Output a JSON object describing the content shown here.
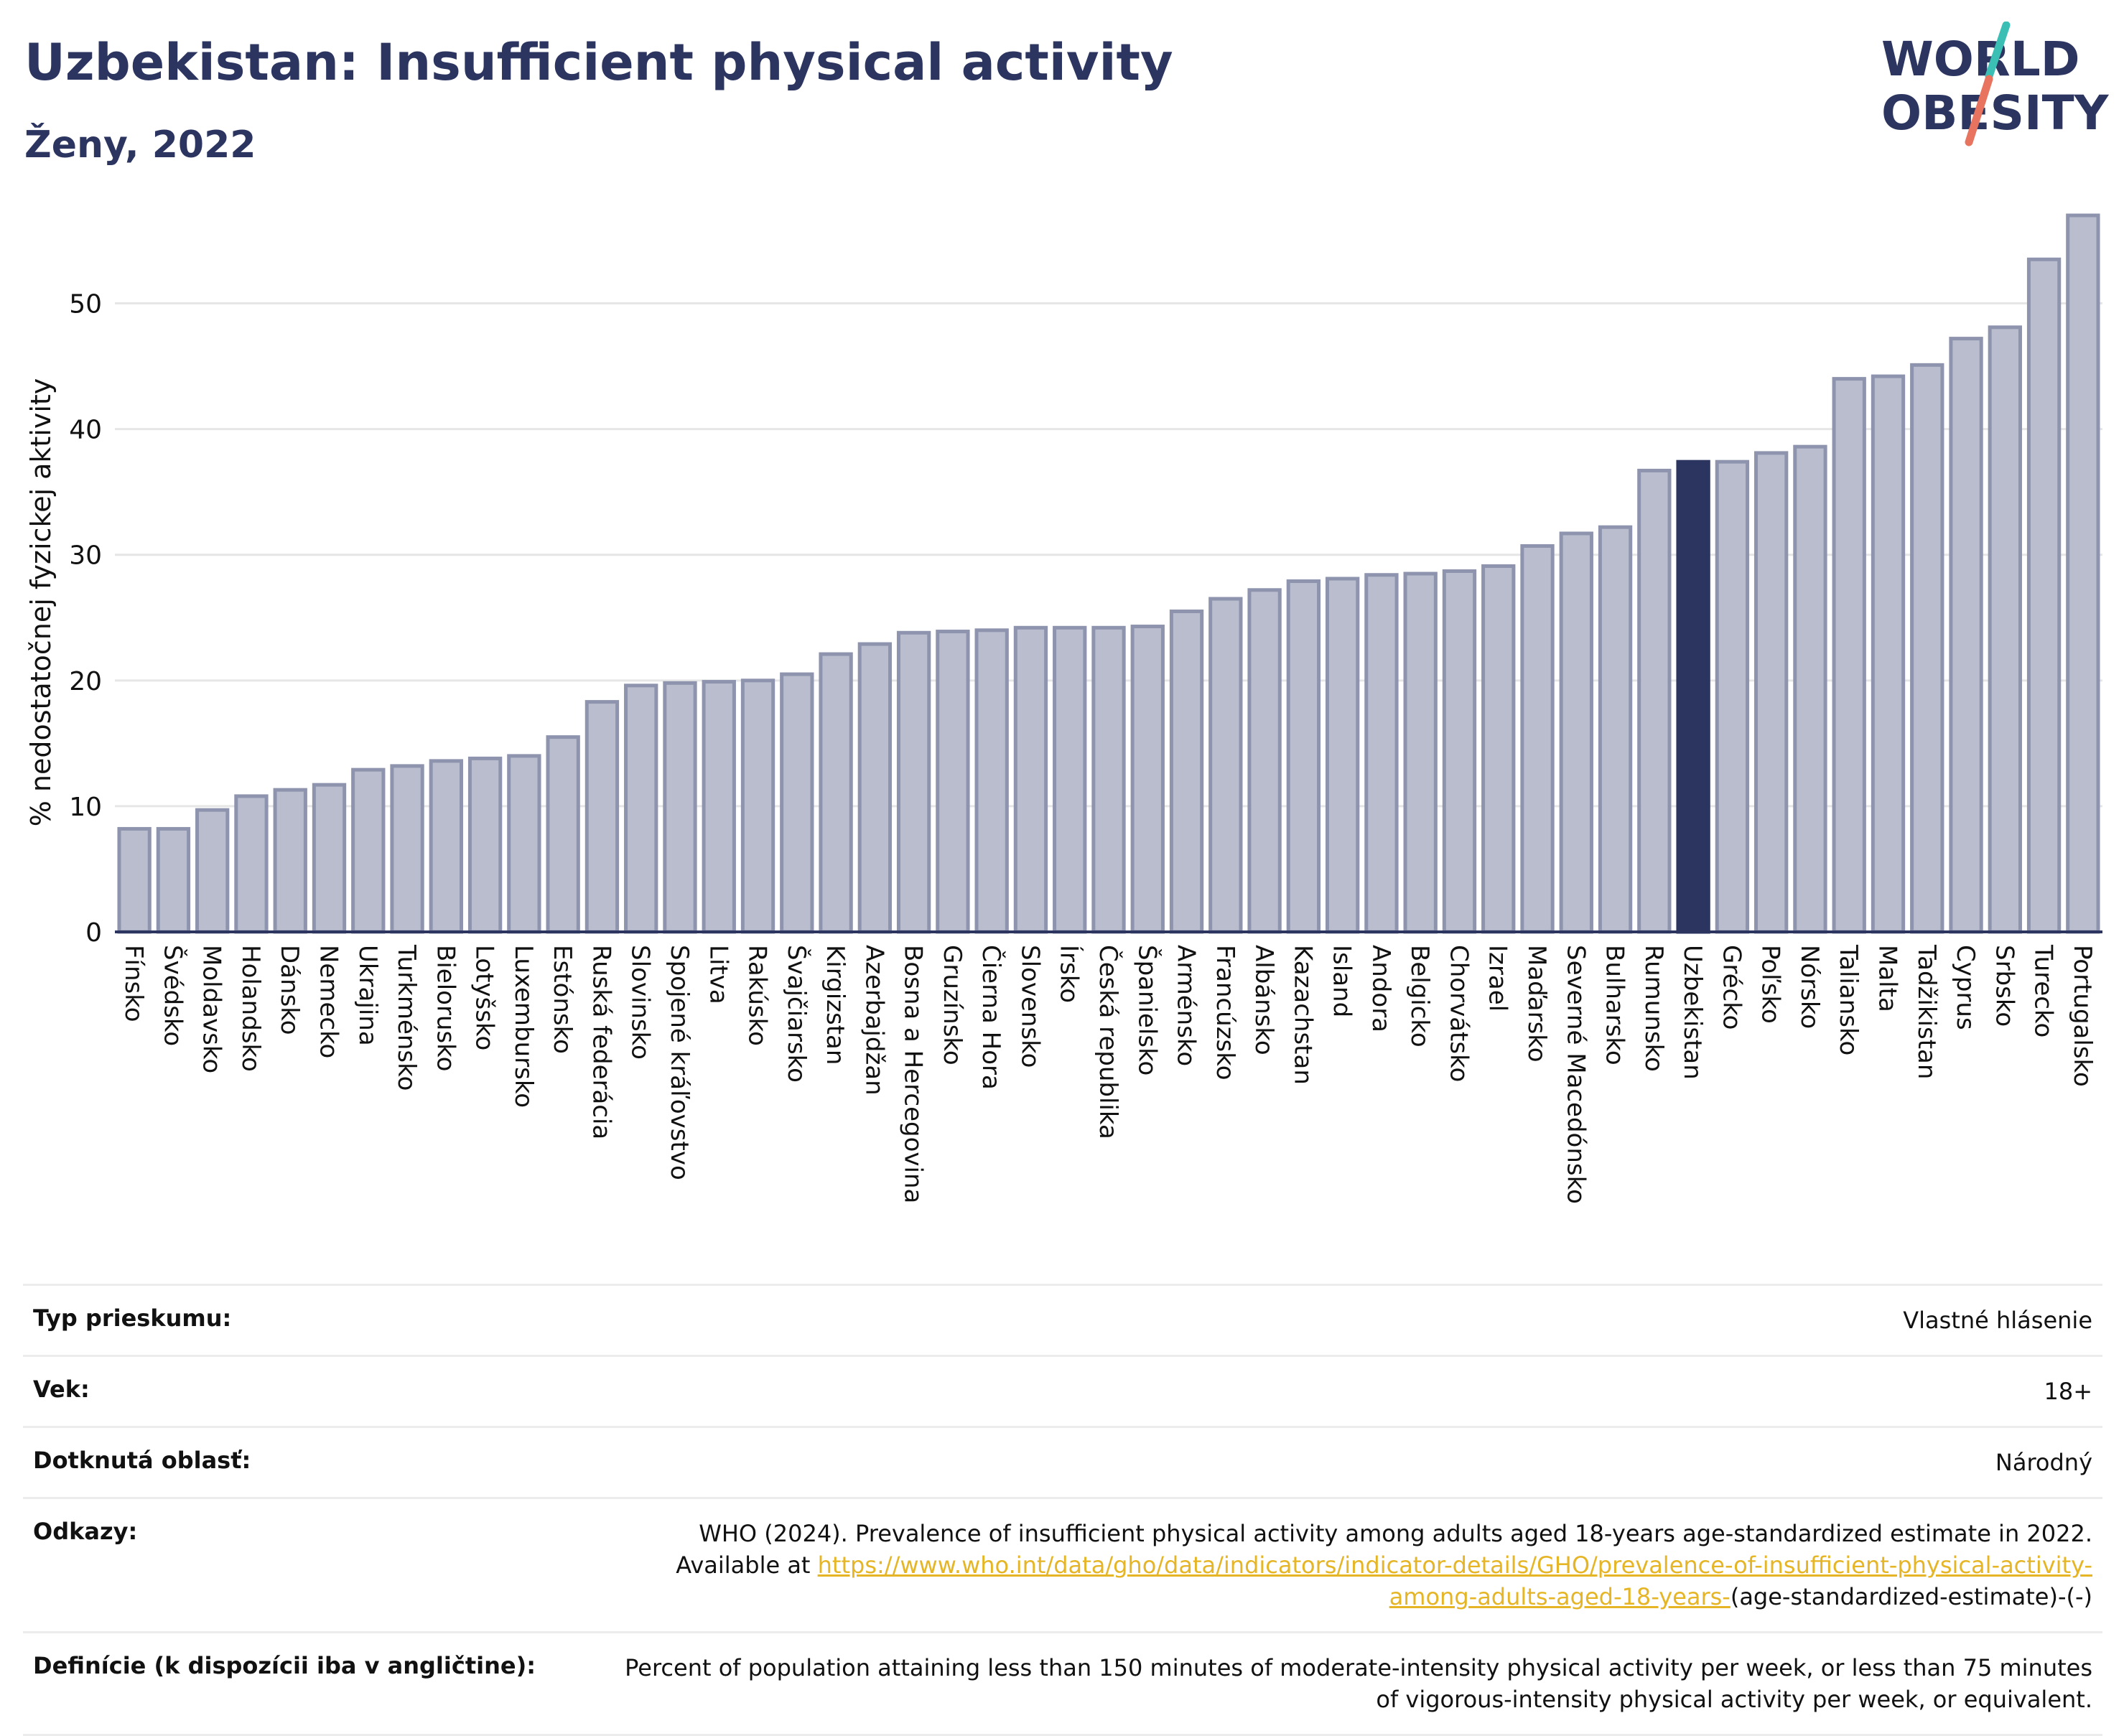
{
  "header": {
    "title": "Uzbekistan: Insufficient physical activity",
    "subtitle": "Ženy, 2022"
  },
  "logo": {
    "line1": "WORLD",
    "line2": "OBESITY",
    "text_color": "#2b3560",
    "slash_colors": [
      "#3bbfb5",
      "#e8735e"
    ]
  },
  "colors": {
    "bar_fill": "#b9bdcd",
    "bar_stroke": "#8e94ad",
    "highlight": "#2b3560",
    "grid": "#e6e6e6"
  },
  "chart_data": {
    "type": "bar",
    "ylabel": "% nedostatočnej fyzickej aktivity",
    "ylim": [
      0,
      57
    ],
    "yticks": [
      0,
      10,
      20,
      30,
      40,
      50
    ],
    "grid": true,
    "highlight": "Uzbekistan",
    "categories": [
      "Fínsko",
      "Švédsko",
      "Moldavsko",
      "Holandsko",
      "Dánsko",
      "Nemecko",
      "Ukrajina",
      "Turkménsko",
      "Bielorusko",
      "Lotyšsko",
      "Luxembursko",
      "Estónsko",
      "Ruská federácia",
      "Slovinsko",
      "Spojené kráľovstvo",
      "Litva",
      "Rakúsko",
      "Švajčiarsko",
      "Kirgizstan",
      "Azerbajdžan",
      "Bosna a Hercegovina",
      "Gruzínsko",
      "Čierna Hora",
      "Slovensko",
      "Írsko",
      "Česká republika",
      "Španielsko",
      "Arménsko",
      "Francúzsko",
      "Albánsko",
      "Kazachstan",
      "Island",
      "Andora",
      "Belgicko",
      "Chorvátsko",
      "Izrael",
      "Maďarsko",
      "Severné Macedónsko",
      "Bulharsko",
      "Rumunsko",
      "Uzbekistan",
      "Grécko",
      "Poľsko",
      "Nórsko",
      "Taliansko",
      "Malta",
      "Tadžikistan",
      "Cyprus",
      "Srbsko",
      "Turecko",
      "Portugalsko"
    ],
    "values": [
      8.2,
      8.2,
      9.7,
      10.8,
      11.3,
      11.7,
      12.9,
      13.2,
      13.6,
      13.8,
      14.0,
      15.5,
      18.3,
      19.6,
      19.8,
      19.9,
      20.0,
      20.5,
      22.1,
      22.9,
      23.8,
      23.9,
      24.0,
      24.2,
      24.2,
      24.2,
      24.3,
      25.5,
      26.5,
      27.2,
      27.9,
      28.1,
      28.4,
      28.5,
      28.7,
      29.1,
      30.7,
      31.7,
      32.2,
      36.7,
      37.4,
      37.4,
      38.1,
      38.6,
      44.0,
      44.2,
      45.1,
      47.2,
      48.1,
      53.5,
      57.0
    ]
  },
  "meta": [
    {
      "label": "Typ prieskumu:",
      "value": "Vlastné hlásenie"
    },
    {
      "label": "Vek:",
      "value": "18+"
    },
    {
      "label": "Dotknutá oblasť:",
      "value": "Národný"
    },
    {
      "label": "Odkazy:",
      "value": "WHO (2024). Prevalence of insufficient physical activity among adults aged 18-years age-standardized estimate in 2022. Available at ",
      "link": "https://www.who.int/data/gho/data/indicators/indicator-details/GHO/prevalence-of-insufficient-physical-activity-among-adults-aged-18-years-",
      "suffix": "(age-standardized-estimate)-(-)"
    },
    {
      "label": "Definície (k dispozícii iba v angličtine):",
      "value": "Percent of population attaining less than 150 minutes of moderate-intensity physical activity per week, or less than 75 minutes of vigorous-intensity physical activity per week, or equivalent."
    }
  ]
}
